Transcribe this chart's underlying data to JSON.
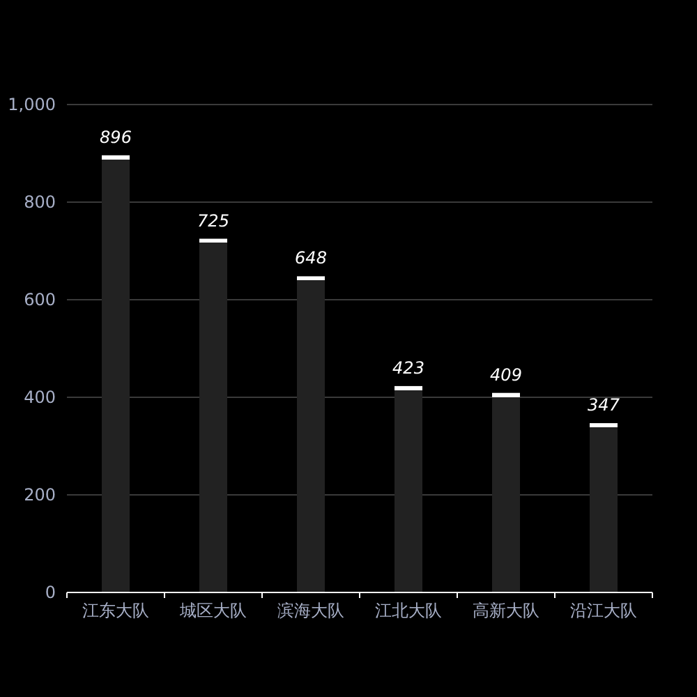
{
  "chart_data": {
    "type": "bar",
    "categories": [
      "江东大队",
      "城区大队",
      "滨海大队",
      "江北大队",
      "高新大队",
      "沿江大队"
    ],
    "values": [
      896,
      725,
      648,
      423,
      409,
      347
    ],
    "color": "#222222",
    "ylim": [
      0,
      1000
    ],
    "yticks": [
      0,
      200,
      400,
      600,
      800,
      {
        "value": 1000,
        "label": "1,000"
      }
    ],
    "grid": "y",
    "data_labels": true
  }
}
